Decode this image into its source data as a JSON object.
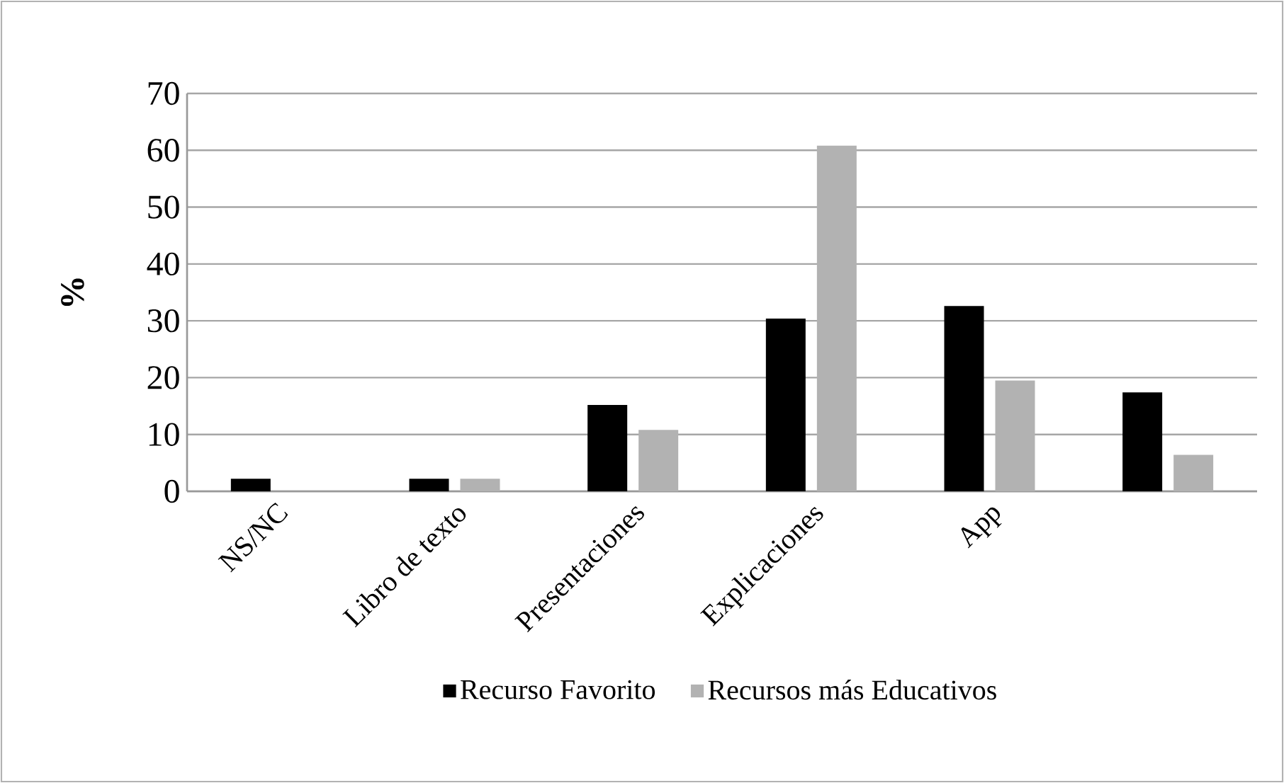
{
  "chart_data": {
    "type": "bar",
    "ylabel": "%",
    "categories": [
      "NS/NC",
      "Libro de texto",
      "Presentaciones",
      "Explicaciones",
      "App",
      null
    ],
    "series": [
      {
        "name": "Recurso Favorito",
        "color": "#000000",
        "values": [
          2.2,
          2.2,
          15.2,
          30.4,
          32.6,
          17.4
        ]
      },
      {
        "name": "Recursos más Educativos",
        "color": "#b2b2b2",
        "values": [
          0,
          2.2,
          10.8,
          60.8,
          19.5,
          6.4
        ]
      }
    ],
    "ylim": [
      0,
      70
    ],
    "yticks": [
      0,
      10,
      20,
      30,
      40,
      50,
      60,
      70
    ],
    "grid": "y",
    "legend": "bottom"
  }
}
